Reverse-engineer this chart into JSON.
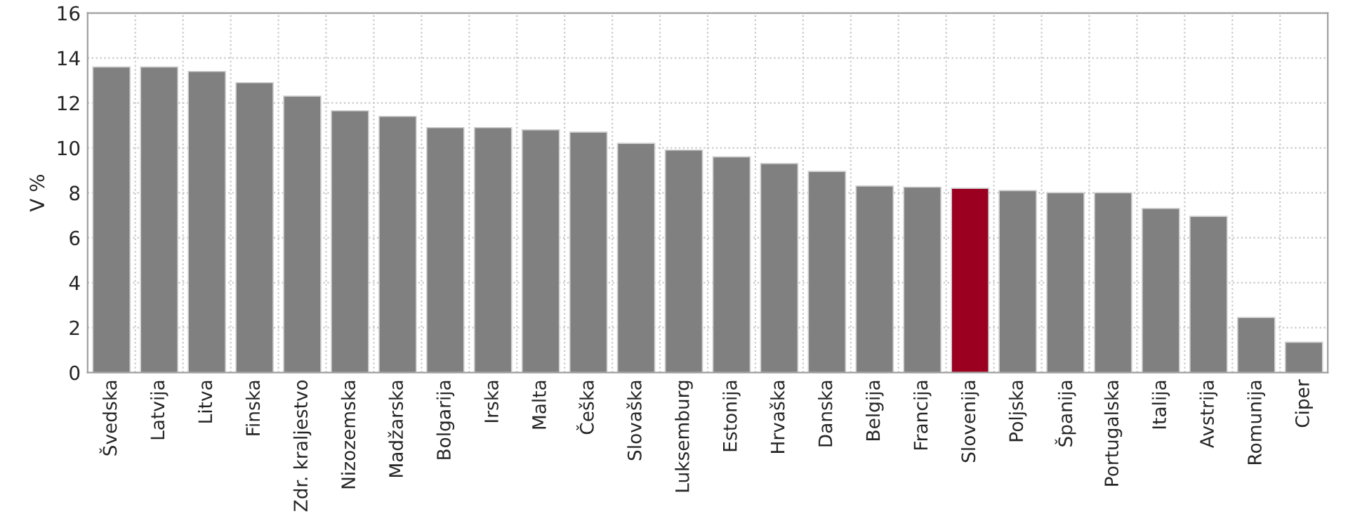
{
  "chart_data": {
    "type": "bar",
    "ylabel": "V %",
    "categories": [
      "Švedska",
      "Latvija",
      "Litva",
      "Finska",
      "Zdr. kraljestvo",
      "Nizozemska",
      "Madžarska",
      "Bolgarija",
      "Irska",
      "Malta",
      "Češka",
      "Slovaška",
      "Luksemburg",
      "Estonija",
      "Hrvaška",
      "Danska",
      "Belgija",
      "Francija",
      "Slovenija",
      "Poljska",
      "Španija",
      "Portugalska",
      "Italija",
      "Avstrija",
      "Romunija",
      "Ciper"
    ],
    "values": [
      13.6,
      13.6,
      13.4,
      12.9,
      12.3,
      11.65,
      11.4,
      10.9,
      10.9,
      10.8,
      10.7,
      10.2,
      9.9,
      9.6,
      9.3,
      8.95,
      8.3,
      8.25,
      8.2,
      8.1,
      8.0,
      8.0,
      7.3,
      6.95,
      2.45,
      1.35
    ],
    "colors": [
      "#808080",
      "#808080",
      "#808080",
      "#808080",
      "#808080",
      "#808080",
      "#808080",
      "#808080",
      "#808080",
      "#808080",
      "#808080",
      "#808080",
      "#808080",
      "#808080",
      "#808080",
      "#808080",
      "#808080",
      "#808080",
      "#9b0020",
      "#808080",
      "#808080",
      "#808080",
      "#808080",
      "#808080",
      "#808080",
      "#808080"
    ],
    "ylim": [
      0,
      16
    ],
    "yticks": [
      0,
      2,
      4,
      6,
      8,
      10,
      12,
      14,
      16
    ],
    "grid": true
  }
}
